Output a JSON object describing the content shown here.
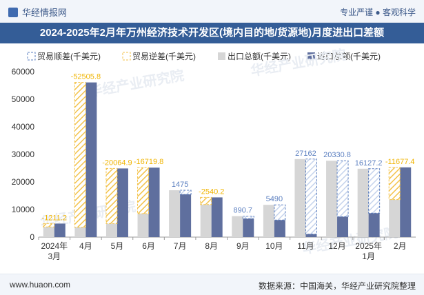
{
  "header": {
    "brand": "华经情报网",
    "slogan": "专业严谨 ● 客观科学"
  },
  "title": "2024-2025年2月年万州经济技术开发区(境内目的地/货源地)月度进出口差额",
  "footer": {
    "site": "www.huaon.com",
    "source": "数据来源：中国海关，华经产业研究院整理"
  },
  "watermark": "华经产业研究院",
  "colors": {
    "surplus": "#5b7fc0",
    "deficit": "#f3c248",
    "export": "#d6d6d6",
    "import": "#5f6f9e",
    "label": "#5b7fc0",
    "deficit_label": "#f0b400"
  },
  "chart_data": {
    "type": "bar",
    "categories": [
      "2024年3月",
      "4月",
      "5月",
      "6月",
      "7月",
      "8月",
      "9月",
      "10月",
      "11月",
      "12月",
      "2025年1月",
      "2月"
    ],
    "legend": [
      "贸易顺差(千美元)",
      "贸易逆差(千美元)",
      "出口总额(千美元)",
      "进口总额(千美元)"
    ],
    "legend_placement": "top",
    "series": [
      {
        "name": "出口总额(千美元)",
        "values": [
          3700,
          3600,
          4900,
          8500,
          17000,
          11800,
          7600,
          11700,
          28300,
          27700,
          24800,
          13600
        ]
      },
      {
        "name": "进口总额(千美元)",
        "values": [
          4900,
          56100,
          24900,
          25200,
          15500,
          14400,
          6700,
          6200,
          1100,
          7400,
          8700,
          25300
        ]
      }
    ],
    "balance": [
      {
        "value": 1211.2,
        "label": "-1211.2",
        "type": "deficit"
      },
      {
        "value": 52505.8,
        "label": "-52505.8",
        "type": "deficit"
      },
      {
        "value": 20064.9,
        "label": "-20064.9",
        "type": "deficit"
      },
      {
        "value": 16719.8,
        "label": "-16719.8",
        "type": "deficit"
      },
      {
        "value": 1475,
        "label": "1475",
        "type": "surplus"
      },
      {
        "value": 2540.2,
        "label": "-2540.2",
        "type": "deficit"
      },
      {
        "value": 890.7,
        "label": "890.7",
        "type": "surplus"
      },
      {
        "value": 5490,
        "label": "5490",
        "type": "surplus"
      },
      {
        "value": 27162,
        "label": "27162",
        "type": "surplus"
      },
      {
        "value": 20330.8,
        "label": "20330.8",
        "type": "surplus"
      },
      {
        "value": 16127.2,
        "label": "16127.2",
        "type": "surplus"
      },
      {
        "value": 11677.4,
        "label": "-11677.4",
        "type": "deficit"
      }
    ],
    "ylim": [
      0,
      60000
    ],
    "yticks": [
      0,
      10000,
      20000,
      30000,
      40000,
      50000,
      60000
    ],
    "grid": false
  }
}
